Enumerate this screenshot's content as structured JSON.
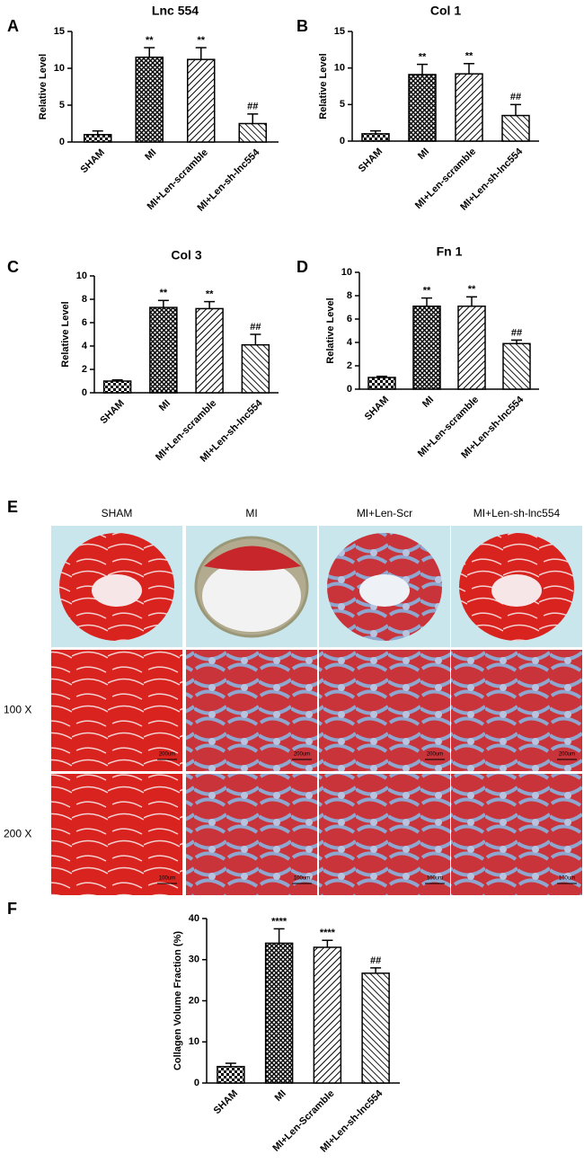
{
  "chart_data": [
    {
      "type": "bar",
      "panel": "A",
      "title": "Lnc 554",
      "ylabel": "Relative Level",
      "categories": [
        "SHAM",
        "MI",
        "MI+Len-scramble",
        "MI+Len-sh-lnc554"
      ],
      "values": [
        1.0,
        11.5,
        11.2,
        2.5
      ],
      "errors": [
        0.5,
        1.3,
        1.6,
        1.3
      ],
      "annotations": [
        null,
        "**",
        "**",
        "##"
      ],
      "ylim": [
        0,
        15
      ],
      "yticks": [
        0,
        5,
        10,
        15
      ]
    },
    {
      "type": "bar",
      "panel": "B",
      "title": "Col 1",
      "ylabel": "Relative Level",
      "categories": [
        "SHAM",
        "MI",
        "MI+Len-scramble",
        "MI+Len-sh-lnc554"
      ],
      "values": [
        1.0,
        9.1,
        9.2,
        3.5
      ],
      "errors": [
        0.4,
        1.4,
        1.4,
        1.5
      ],
      "annotations": [
        null,
        "**",
        "**",
        "##"
      ],
      "ylim": [
        0,
        15
      ],
      "yticks": [
        0,
        5,
        10,
        15
      ]
    },
    {
      "type": "bar",
      "panel": "C",
      "title": "Col 3",
      "ylabel": "Relative Level",
      "categories": [
        "SHAM",
        "MI",
        "MI+Len-scramble",
        "MI+Len-sh-lnc554"
      ],
      "values": [
        1.0,
        7.3,
        7.2,
        4.1
      ],
      "errors": [
        0.1,
        0.6,
        0.6,
        0.9
      ],
      "annotations": [
        null,
        "**",
        "**",
        "##"
      ],
      "ylim": [
        0,
        10
      ],
      "yticks": [
        0,
        2,
        4,
        6,
        8,
        10
      ]
    },
    {
      "type": "bar",
      "panel": "D",
      "title": "Fn 1",
      "ylabel": "Relative Level",
      "categories": [
        "SHAM",
        "MI",
        "MI+Len-scramble",
        "MI+Len-sh-lnc554"
      ],
      "values": [
        1.0,
        7.1,
        7.1,
        3.9
      ],
      "errors": [
        0.1,
        0.7,
        0.8,
        0.3
      ],
      "annotations": [
        null,
        "**",
        "**",
        "##"
      ],
      "ylim": [
        0,
        10
      ],
      "yticks": [
        0,
        2,
        4,
        6,
        8,
        10
      ]
    },
    {
      "type": "bar",
      "panel": "F",
      "ylabel": "Collagen Volume Fraction (%)",
      "categories": [
        "SHAM",
        "MI",
        "MI+Len-Scramble",
        "MI+Len-sh-lnc554"
      ],
      "values": [
        4.0,
        34.0,
        33.0,
        26.7
      ],
      "errors": [
        0.8,
        3.5,
        1.7,
        1.3
      ],
      "annotations": [
        null,
        "****",
        "****",
        "##"
      ],
      "ylim": [
        0,
        40
      ],
      "yticks": [
        0,
        10,
        20,
        30,
        40
      ]
    }
  ],
  "panel_e": {
    "panel": "E",
    "columns": [
      "SHAM",
      "MI",
      "MI+Len-Scr",
      "MI+Len-sh-lnc554"
    ],
    "rows": [
      "100 X",
      "200 X"
    ],
    "scale_labels": [
      "200um",
      "100um"
    ]
  }
}
